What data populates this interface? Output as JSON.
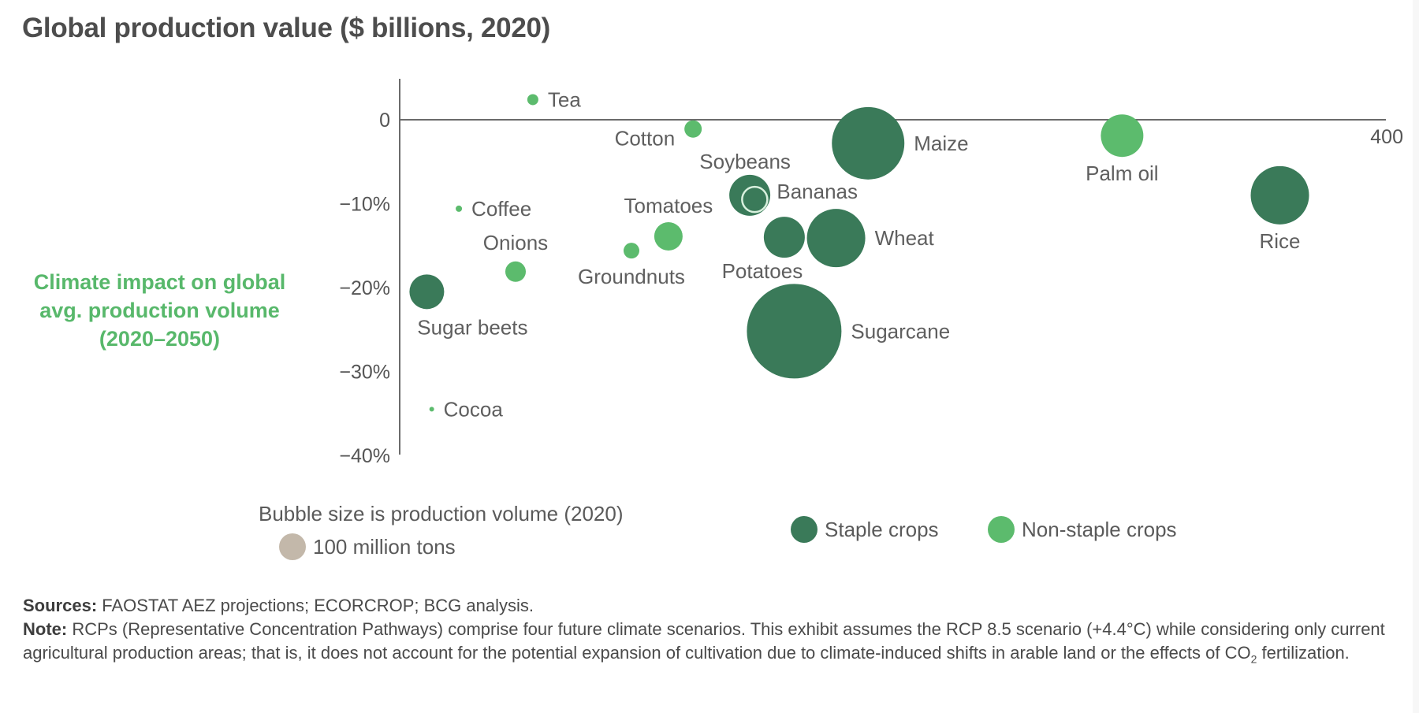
{
  "chart_data": {
    "type": "scatter",
    "subtype": "bubble",
    "title": "Global production value ($ billions, 2020)",
    "xlabel": "Global production value ($ billions, 2020)",
    "ylabel": "Climate impact on global avg. production volume (2020–2050)",
    "ylabel_lines": [
      "Climate impact on global",
      "avg. production volume",
      "(2020–2050)"
    ],
    "xlim": [
      0,
      400
    ],
    "ylim": [
      -40,
      5
    ],
    "x_ticks": [
      {
        "value": 400,
        "label": "400"
      }
    ],
    "y_ticks": [
      {
        "value": 0,
        "label": "0"
      },
      {
        "value": -10,
        "label": "−10%"
      },
      {
        "value": -20,
        "label": "−20%"
      },
      {
        "value": -30,
        "label": "−30%"
      },
      {
        "value": -40,
        "label": "−40%"
      }
    ],
    "grid": false,
    "size_unit": "relative production volume (2020), reference bubble = 100 million tons",
    "series": [
      {
        "name": "Staple crops",
        "color": "#3a7a59"
      },
      {
        "name": "Non-staple crops",
        "color": "#5cbb6d"
      }
    ],
    "points": [
      {
        "label": "Tea",
        "x": 54,
        "y": 2.4,
        "size": 7,
        "series": "Non-staple crops",
        "label_pos": "right"
      },
      {
        "label": "Cotton",
        "x": 119,
        "y": -1.1,
        "size": 11,
        "series": "Non-staple crops",
        "label_pos": "left-below"
      },
      {
        "label": "Maize",
        "x": 190,
        "y": -2.8,
        "size": 46,
        "series": "Staple crops",
        "label_pos": "right"
      },
      {
        "label": "Palm oil",
        "x": 293,
        "y": -1.9,
        "size": 27,
        "series": "Non-staple crops",
        "label_pos": "below"
      },
      {
        "label": "Soybeans",
        "x": 142,
        "y": -9.0,
        "size": 26,
        "series": "Staple crops",
        "label_pos": "above"
      },
      {
        "label": "Bananas",
        "x": 144,
        "y": -9.5,
        "size": 16,
        "series": "Staple crops",
        "label_pos": "right",
        "outlined": true
      },
      {
        "label": "Rice",
        "x": 357,
        "y": -9.0,
        "size": 37,
        "series": "Staple crops",
        "label_pos": "below"
      },
      {
        "label": "Coffee",
        "x": 24,
        "y": -10.6,
        "size": 4,
        "series": "Non-staple crops",
        "label_pos": "right"
      },
      {
        "label": "Tomatoes",
        "x": 109,
        "y": -13.9,
        "size": 18,
        "series": "Non-staple crops",
        "label_pos": "above"
      },
      {
        "label": "Groundnuts",
        "x": 94,
        "y": -15.6,
        "size": 10,
        "series": "Non-staple crops",
        "label_pos": "below"
      },
      {
        "label": "Potatoes",
        "x": 156,
        "y": -14.0,
        "size": 26,
        "series": "Staple crops",
        "label_pos": "below"
      },
      {
        "label": "Wheat",
        "x": 177,
        "y": -14.1,
        "size": 37,
        "series": "Staple crops",
        "label_pos": "right"
      },
      {
        "label": "Onions",
        "x": 47,
        "y": -18.1,
        "size": 13,
        "series": "Non-staple crops",
        "label_pos": "above"
      },
      {
        "label": "Sugar beets",
        "x": 11,
        "y": -20.5,
        "size": 22,
        "series": "Staple crops",
        "label_pos": "below"
      },
      {
        "label": "Sugarcane",
        "x": 160,
        "y": -25.2,
        "size": 60,
        "series": "Staple crops",
        "label_pos": "right"
      },
      {
        "label": "Cocoa",
        "x": 13,
        "y": -34.5,
        "size": 3,
        "series": "Non-staple crops",
        "label_pos": "right"
      }
    ]
  },
  "legend": {
    "size_title": "Bubble size is production volume (2020)",
    "size_reference_label": "100 million tons",
    "size_reference_color": "#c3b8aa",
    "categories": [
      {
        "label": "Staple crops",
        "color": "#3a7a59"
      },
      {
        "label": "Non-staple crops",
        "color": "#5cbb6d"
      }
    ]
  },
  "notes": {
    "sources_label": "Sources:",
    "sources_text": " FAOSTAT AEZ projections; ECORCROP; BCG analysis.",
    "note_label": "Note:",
    "note_text_1": " RCPs (Representative Concentration Pathways) comprise four future climate scenarios. This exhibit assumes the RCP 8.5 scenario (+4.4°C) while considering only current agricultural production areas; that is, it does not account for the potential expansion of cultivation due to climate-induced shifts in arable land or the effects of CO",
    "note_subscript": "2",
    "note_text_2": " fertilization."
  }
}
